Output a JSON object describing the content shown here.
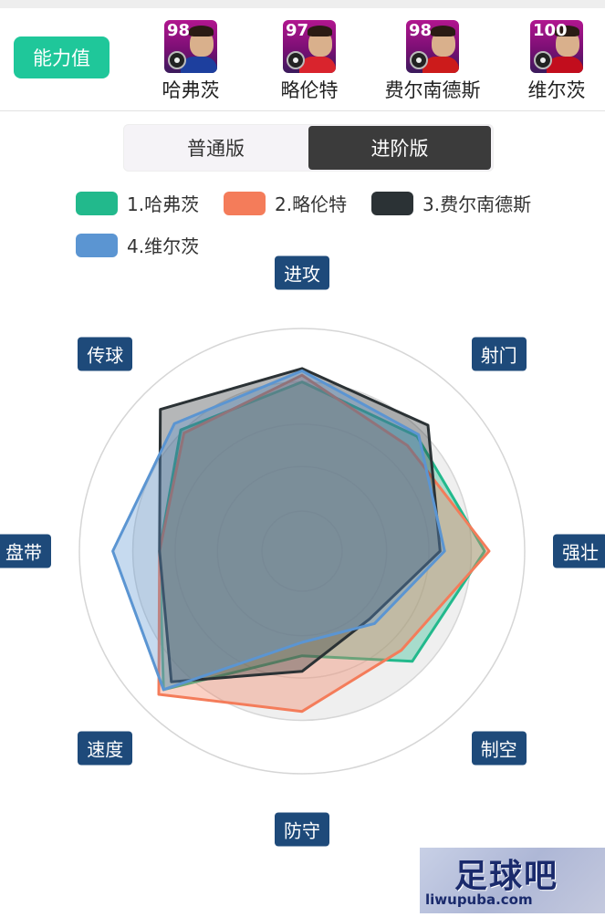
{
  "header": {
    "ability_button": "能力值",
    "players": [
      {
        "rating": "98",
        "name": "哈弗茨",
        "shirt": "#1d3f9e"
      },
      {
        "rating": "97",
        "name": "略伦特",
        "shirt": "#d9242d"
      },
      {
        "rating": "98",
        "name": "费尔南德斯",
        "shirt": "#cc1b1b"
      },
      {
        "rating": "100",
        "name": "维尔茨",
        "shirt": "#c20d1d"
      }
    ]
  },
  "toggle": {
    "left": "普通版",
    "right": "进阶版",
    "active": "right"
  },
  "legend": [
    {
      "label": "1.哈弗茨",
      "color": "#22b98c"
    },
    {
      "label": "2.略伦特",
      "color": "#f47c5a"
    },
    {
      "label": "3.费尔南德斯",
      "color": "#2b3235"
    },
    {
      "label": "4.维尔茨",
      "color": "#5b95d2"
    }
  ],
  "chart_data": {
    "type": "radar",
    "axes": [
      "进攻",
      "射门",
      "强壮",
      "制空",
      "防守",
      "速度",
      "盘带",
      "传球"
    ],
    "range": [
      0,
      100
    ],
    "series": [
      {
        "name": "1.哈弗茨",
        "color": "#22b98c",
        "values": [
          76,
          73,
          82,
          70,
          47,
          88,
          64,
          77
        ]
      },
      {
        "name": "2.略伦特",
        "color": "#f47c5a",
        "values": [
          79,
          67,
          84,
          63,
          72,
          91,
          64,
          75
        ]
      },
      {
        "name": "3.费尔南德斯",
        "color": "#2b3235",
        "values": [
          82,
          80,
          62,
          43,
          54,
          83,
          64,
          90
        ]
      },
      {
        "name": "4.维尔茨",
        "color": "#5b95d2",
        "values": [
          81,
          74,
          64,
          46,
          41,
          88,
          85,
          81
        ]
      }
    ]
  },
  "watermark": {
    "title": "足球吧",
    "url": "liwupuba.com"
  }
}
